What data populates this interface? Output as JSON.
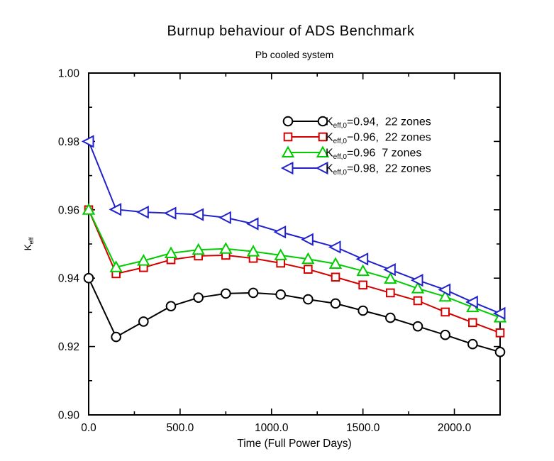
{
  "title": "Burnup behaviour of ADS Benchmark",
  "subtitle": "Pb cooled system",
  "chart_data": {
    "type": "line",
    "title": "Burnup behaviour of ADS Benchmark",
    "subtitle": "Pb cooled system",
    "xlabel": "Time (Full Power Days)",
    "ylabel_main": "K",
    "ylabel_sub": "eff",
    "xlim": [
      0,
      2250
    ],
    "ylim": [
      0.9,
      1.0
    ],
    "grid": false,
    "legend_position": "inside-upper-right",
    "x_major_ticks": [
      0,
      500,
      1000,
      1500,
      2000
    ],
    "x_major_tick_labels": [
      "0.0",
      "500.0",
      "1000.0",
      "1500.0",
      "2000.0"
    ],
    "x_minor_step": 250,
    "y_major_ticks": [
      0.9,
      0.92,
      0.94,
      0.96,
      0.98,
      1.0
    ],
    "y_major_tick_labels": [
      "0.90",
      "0.92",
      "0.94",
      "0.96",
      "0.98",
      "1.00"
    ],
    "y_minor_step": 0.01,
    "x": [
      0,
      150,
      300,
      450,
      600,
      750,
      900,
      1050,
      1200,
      1350,
      1500,
      1650,
      1800,
      1950,
      2100,
      2250
    ],
    "series": [
      {
        "id": "keff094-22zones",
        "marker": "circle",
        "color": "#000000",
        "legend": {
          "k": "K",
          "sub": "eff,0",
          "rest": "=0.94,  22 zones"
        },
        "values": [
          0.94,
          0.9228,
          0.9273,
          0.9318,
          0.9343,
          0.9355,
          0.9357,
          0.9352,
          0.9338,
          0.9326,
          0.9305,
          0.9284,
          0.9259,
          0.9234,
          0.9207,
          0.9184
        ]
      },
      {
        "id": "keff096-22zones",
        "marker": "square",
        "color": "#d40000",
        "legend": {
          "k": "K",
          "sub": "eff,0",
          "rest": "−0.96,  22 zones"
        },
        "values": [
          0.96,
          0.9413,
          0.9431,
          0.9454,
          0.9465,
          0.9467,
          0.9458,
          0.9444,
          0.9426,
          0.9403,
          0.938,
          0.9357,
          0.9334,
          0.9301,
          0.927,
          0.924
        ]
      },
      {
        "id": "keff096-7zones",
        "marker": "triangle-up",
        "color": "#00cc00",
        "legend": {
          "k": "K",
          "sub": "eff,0",
          "rest": "=0.96  7 zones"
        },
        "values": [
          0.96,
          0.9432,
          0.9451,
          0.9473,
          0.9483,
          0.9486,
          0.9478,
          0.9467,
          0.9456,
          0.9442,
          0.9421,
          0.9398,
          0.937,
          0.9346,
          0.9315,
          0.9285
        ]
      },
      {
        "id": "keff098-22zones",
        "marker": "triangle-left",
        "color": "#2222cc",
        "legend": {
          "k": "K",
          "sub": "eff,0",
          "rest": "=0.98,  22 zones"
        },
        "values": [
          0.98,
          0.9601,
          0.9593,
          0.959,
          0.9586,
          0.9577,
          0.9559,
          0.9535,
          0.9513,
          0.9491,
          0.9456,
          0.9425,
          0.9394,
          0.9366,
          0.933,
          0.9297
        ]
      }
    ]
  }
}
